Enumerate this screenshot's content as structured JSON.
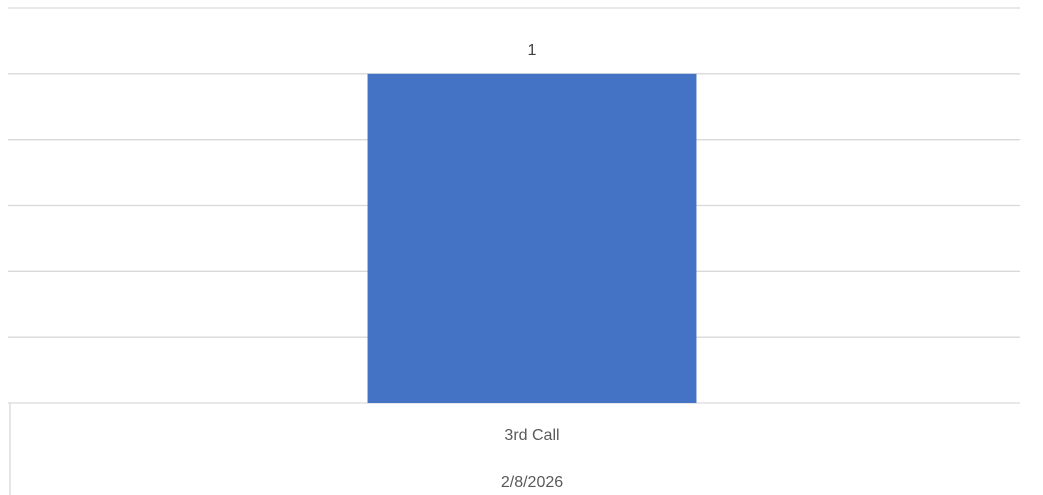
{
  "chart_data": {
    "type": "bar",
    "categories": [
      "3rd Call"
    ],
    "category_groups": [
      "2/8/2026"
    ],
    "values": [
      1
    ],
    "color": "#4472c4",
    "ylim": [
      0,
      1.2
    ],
    "yticks": [
      0,
      0.2,
      0.4,
      0.6,
      0.8,
      1,
      1.2
    ],
    "grid": true
  }
}
